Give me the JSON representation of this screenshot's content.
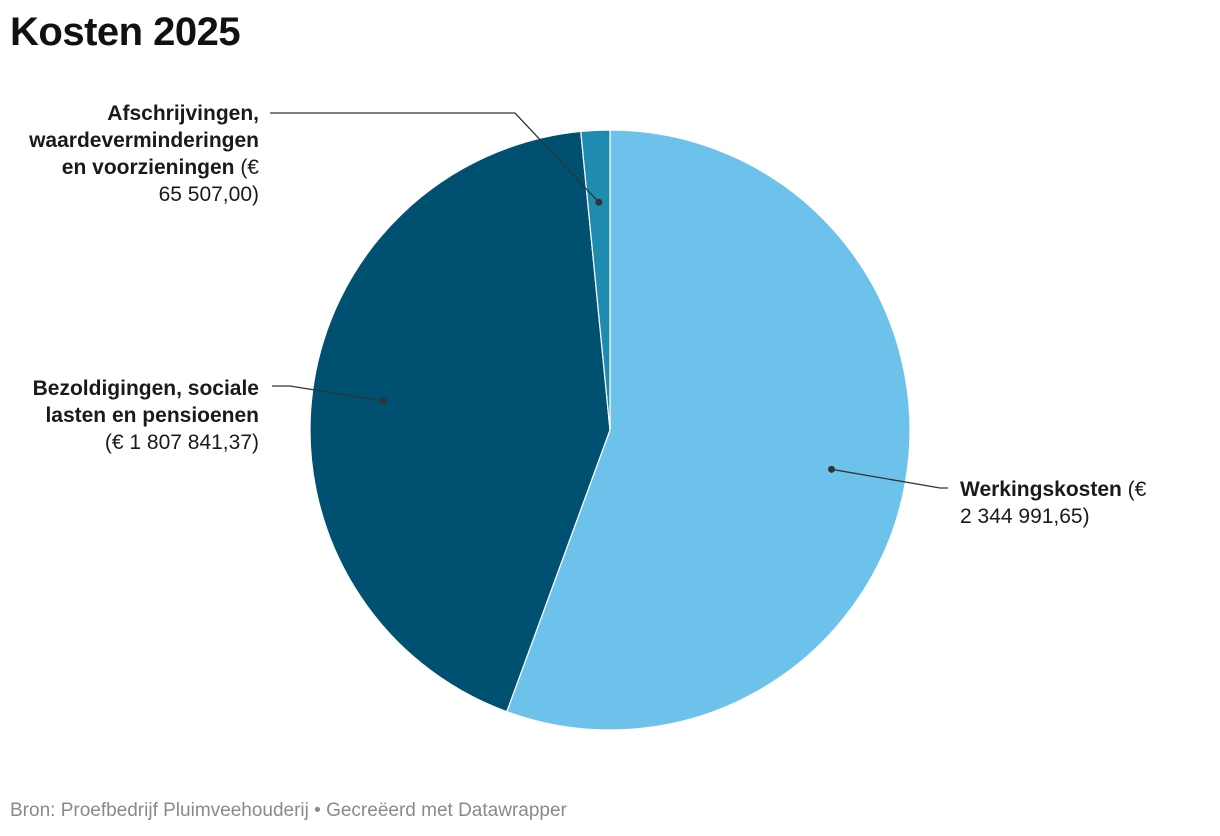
{
  "chart_data": {
    "type": "pie",
    "title": "Kosten 2025",
    "slices": [
      {
        "name": "Werkingskosten",
        "value_label": "(€ 2 344 991,65)",
        "line1_bold": "Werkingskosten",
        "line1_rest": " (€",
        "line2": "2 344 991,65)",
        "value": 2344991.65,
        "color": "#6cc2eb"
      },
      {
        "name": "Bezoldigingen, sociale lasten en pensioenen",
        "line1_bold": "Bezoldigingen, sociale",
        "line2_bold": "lasten en pensioenen",
        "line3": "(€ 1 807 841,37)",
        "value": 1807841.37,
        "color": "#005072"
      },
      {
        "name": "Afschrijvingen, waardeverminderingen en voorzieningen",
        "line1_bold": "Afschrijvingen,",
        "line2_bold": "waardeverminderingen",
        "line3_bold": "en voorzieningen",
        "line3_rest": " (€",
        "line4": "65 507,00)",
        "value": 65507.0,
        "color": "#1f8bb0"
      }
    ]
  },
  "footer": {
    "text": "Bron: Proefbedrijf Pluimveehouderij • Gecreëerd met Datawrapper"
  }
}
